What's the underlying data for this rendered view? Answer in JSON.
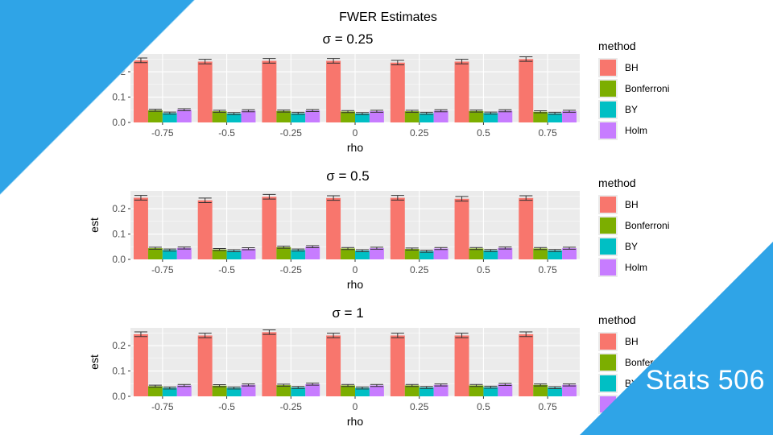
{
  "figure_title": "FWER Estimates",
  "badge": "Stats 506",
  "colors": {
    "accent": "#2fa4e7",
    "panel_bg": "#ebebeb",
    "grid": "#ffffff",
    "error_bar": "#333333",
    "methods": {
      "BH": "#f8766d",
      "Bonferroni": "#7cae00",
      "BY": "#00bfc4",
      "Holm": "#c77cff"
    }
  },
  "chart_data": [
    {
      "type": "bar",
      "title": "σ = 0.25",
      "xlabel": "rho",
      "ylabel": "est",
      "categories": [
        "-0.75",
        "-0.5",
        "-0.25",
        "0",
        "0.25",
        "0.5",
        "0.75"
      ],
      "ylim": [
        0,
        0.27
      ],
      "yticks": [
        "0.0",
        "0.1",
        "0.2"
      ],
      "legend_title": "method",
      "legend_position": "right",
      "grid": true,
      "series": [
        {
          "name": "BH",
          "values": [
            0.245,
            0.24,
            0.243,
            0.243,
            0.236,
            0.24,
            0.25
          ],
          "err": [
            0.009,
            0.009,
            0.009,
            0.009,
            0.009,
            0.009,
            0.009
          ]
        },
        {
          "name": "Bonferroni",
          "values": [
            0.048,
            0.044,
            0.045,
            0.043,
            0.044,
            0.045,
            0.042
          ],
          "err": [
            0.004,
            0.004,
            0.004,
            0.004,
            0.004,
            0.004,
            0.004
          ]
        },
        {
          "name": "BY",
          "values": [
            0.037,
            0.035,
            0.036,
            0.035,
            0.036,
            0.037,
            0.036
          ],
          "err": [
            0.004,
            0.004,
            0.004,
            0.004,
            0.004,
            0.004,
            0.004
          ]
        },
        {
          "name": "Holm",
          "values": [
            0.05,
            0.046,
            0.047,
            0.044,
            0.046,
            0.046,
            0.044
          ],
          "err": [
            0.004,
            0.004,
            0.004,
            0.004,
            0.004,
            0.004,
            0.004
          ]
        }
      ]
    },
    {
      "type": "bar",
      "title": "σ = 0.5",
      "xlabel": "rho",
      "ylabel": "est",
      "categories": [
        "-0.75",
        "-0.5",
        "-0.25",
        "0",
        "0.25",
        "0.5",
        "0.75"
      ],
      "ylim": [
        0,
        0.27
      ],
      "yticks": [
        "0.0",
        "0.1",
        "0.2"
      ],
      "legend_title": "method",
      "legend_position": "right",
      "grid": true,
      "series": [
        {
          "name": "BH",
          "values": [
            0.243,
            0.233,
            0.247,
            0.242,
            0.243,
            0.239,
            0.242
          ],
          "err": [
            0.009,
            0.009,
            0.009,
            0.009,
            0.009,
            0.009,
            0.009
          ]
        },
        {
          "name": "Bonferroni",
          "values": [
            0.044,
            0.039,
            0.048,
            0.043,
            0.041,
            0.043,
            0.043
          ],
          "err": [
            0.004,
            0.004,
            0.004,
            0.004,
            0.004,
            0.004,
            0.004
          ]
        },
        {
          "name": "BY",
          "values": [
            0.037,
            0.034,
            0.037,
            0.034,
            0.032,
            0.035,
            0.035
          ],
          "err": [
            0.004,
            0.004,
            0.004,
            0.004,
            0.004,
            0.004,
            0.004
          ]
        },
        {
          "name": "Holm",
          "values": [
            0.045,
            0.042,
            0.05,
            0.044,
            0.043,
            0.045,
            0.044
          ],
          "err": [
            0.004,
            0.004,
            0.004,
            0.004,
            0.004,
            0.004,
            0.004
          ]
        }
      ]
    },
    {
      "type": "bar",
      "title": "σ = 1",
      "xlabel": "rho",
      "ylabel": "est",
      "categories": [
        "-0.75",
        "-0.5",
        "-0.25",
        "0",
        "0.25",
        "0.5",
        "0.75"
      ],
      "ylim": [
        0,
        0.27
      ],
      "yticks": [
        "0.0",
        "0.1",
        "0.2"
      ],
      "legend_title": "method",
      "legend_position": "right",
      "grid": true,
      "series": [
        {
          "name": "BH",
          "values": [
            0.245,
            0.24,
            0.253,
            0.24,
            0.24,
            0.24,
            0.245
          ],
          "err": [
            0.009,
            0.009,
            0.009,
            0.009,
            0.009,
            0.009,
            0.009
          ]
        },
        {
          "name": "Bonferroni",
          "values": [
            0.04,
            0.042,
            0.044,
            0.043,
            0.043,
            0.043,
            0.045
          ],
          "err": [
            0.004,
            0.004,
            0.004,
            0.004,
            0.004,
            0.004,
            0.004
          ]
        },
        {
          "name": "BY",
          "values": [
            0.033,
            0.033,
            0.035,
            0.033,
            0.035,
            0.036,
            0.034
          ],
          "err": [
            0.004,
            0.004,
            0.004,
            0.004,
            0.004,
            0.004,
            0.004
          ]
        },
        {
          "name": "Holm",
          "values": [
            0.043,
            0.045,
            0.048,
            0.043,
            0.045,
            0.047,
            0.045
          ],
          "err": [
            0.004,
            0.004,
            0.004,
            0.004,
            0.004,
            0.004,
            0.004
          ]
        }
      ]
    }
  ]
}
